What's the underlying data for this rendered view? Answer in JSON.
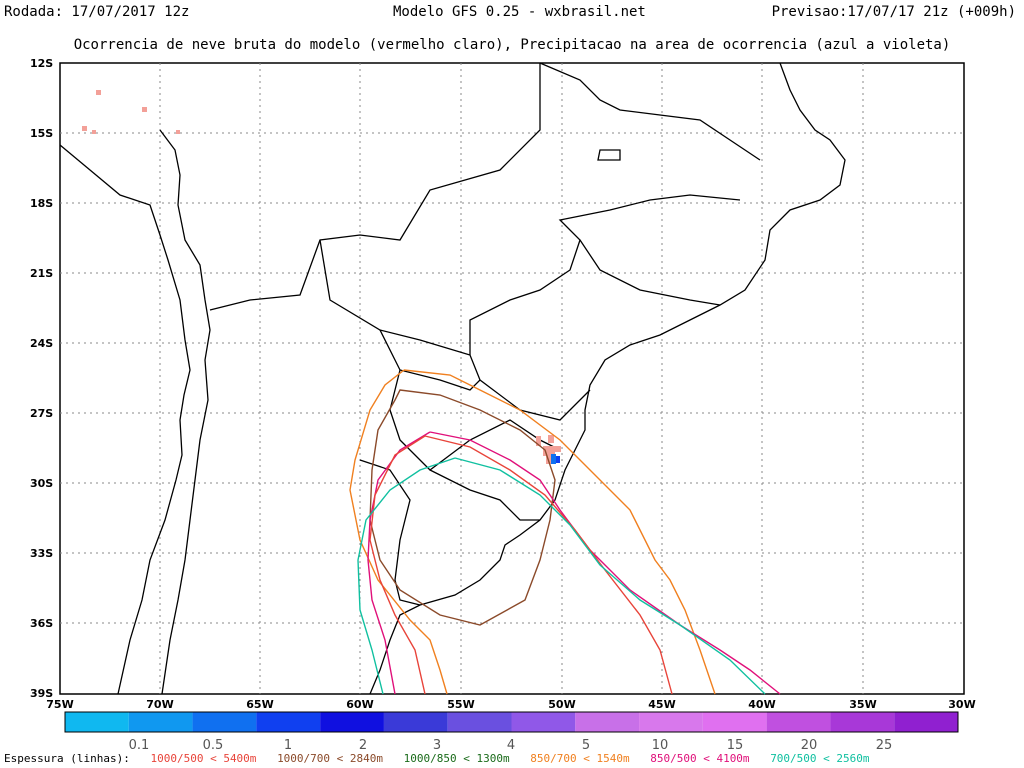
{
  "header": {
    "rodada": "Rodada: 17/07/2017 12z",
    "modelo": "Modelo GFS 0.25 - wxbrasil.net",
    "previsao": "Previsao:17/07/17 21z (+009h)",
    "subtitle": "Ocorrencia de neve bruta do modelo (vermelho claro), Precipitacao na area de ocorrencia (azul a violeta)"
  },
  "map": {
    "lat_labels": [
      "12S",
      "15S",
      "18S",
      "21S",
      "24S",
      "27S",
      "30S",
      "33S",
      "36S",
      "39S"
    ],
    "lon_labels": [
      "75W",
      "70W",
      "65W",
      "60W",
      "55W",
      "50W",
      "45W",
      "40W",
      "35W",
      "30W"
    ]
  },
  "colorbar": {
    "colors": [
      "#10b8f0",
      "#1098f0",
      "#1070f0",
      "#1040f0",
      "#1010e0",
      "#3a3ad8",
      "#6a50e0",
      "#9058e8",
      "#c870e8",
      "#d878ec",
      "#e070f0",
      "#c050e0",
      "#a838d8",
      "#9020d0"
    ],
    "labels": [
      "0.1",
      "0.5",
      "1",
      "2",
      "3",
      "4",
      "5",
      "10",
      "15",
      "20",
      "25"
    ]
  },
  "legend": {
    "title": "Espessura (linhas):",
    "items": [
      {
        "text": "1000/500 < 5400m",
        "color": "#e8443a"
      },
      {
        "text": "1000/700 < 2840m",
        "color": "#8b4a2a"
      },
      {
        "text": "1000/850 < 1300m",
        "color": "#1a6b1a"
      },
      {
        "text": "850/700 < 1540m",
        "color": "#f08020"
      },
      {
        "text": "850/500 < 4100m",
        "color": "#e0107a"
      },
      {
        "text": "700/500 < 2560m",
        "color": "#10c0a0"
      }
    ]
  }
}
